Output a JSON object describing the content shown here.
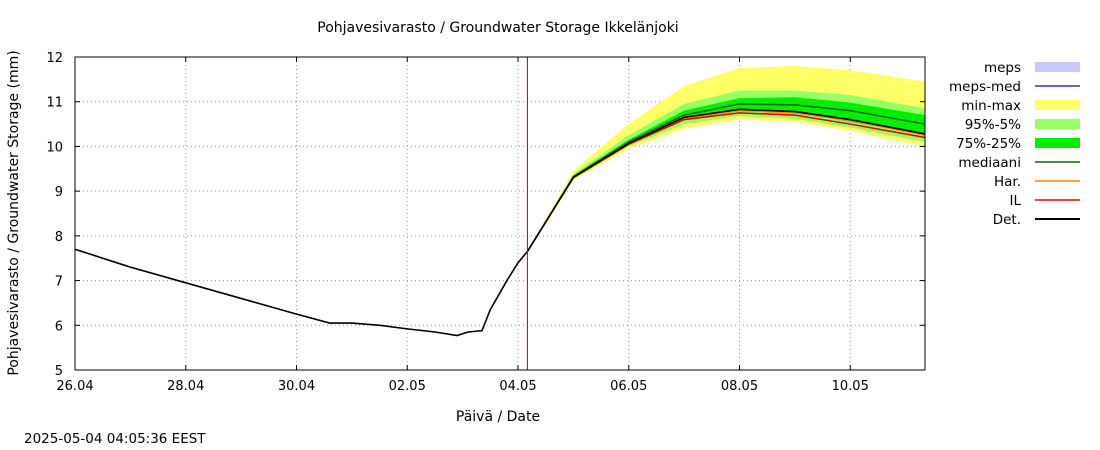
{
  "chart_data": {
    "type": "line",
    "title": "Pohjavesivarasto / Groundwater Storage   Ikkelänjoki",
    "xlabel": "Päivä / Date",
    "ylabel": "Pohjavesivarasto / Groundwater Storage (mm)",
    "timestamp": "2025-05-04 04:05:36 EEST",
    "xlim": [
      0,
      15.35
    ],
    "ylim": [
      5,
      12
    ],
    "x_unit": "days since 26.04",
    "grid": true,
    "xticks": [
      {
        "value": 0,
        "label": "26.04"
      },
      {
        "value": 2,
        "label": "28.04"
      },
      {
        "value": 4,
        "label": "30.04"
      },
      {
        "value": 6,
        "label": "02.05"
      },
      {
        "value": 8,
        "label": "04.05"
      },
      {
        "value": 10,
        "label": "06.05"
      },
      {
        "value": 12,
        "label": "08.05"
      },
      {
        "value": 14,
        "label": "10.05"
      }
    ],
    "yticks": [
      5,
      6,
      7,
      8,
      9,
      10,
      11,
      12
    ],
    "now_marker_x": 8.17,
    "legend": [
      {
        "label": "meps",
        "color": "#c8c8ff",
        "kind": "band"
      },
      {
        "label": "meps-med",
        "color": "#3333cc",
        "kind": "line"
      },
      {
        "label": "min-max",
        "color": "#ffff66",
        "kind": "band"
      },
      {
        "label": "95%-5%",
        "color": "#99ff66",
        "kind": "band"
      },
      {
        "label": "75%-25%",
        "color": "#00ee00",
        "kind": "band"
      },
      {
        "label": "mediaani",
        "color": "#006600",
        "kind": "line"
      },
      {
        "label": "Har.",
        "color": "#ff8800",
        "kind": "line"
      },
      {
        "label": "IL",
        "color": "#dd0000",
        "kind": "line"
      },
      {
        "label": "Det.",
        "color": "#000000",
        "kind": "line"
      }
    ],
    "observed": {
      "x": [
        0,
        1,
        2,
        3,
        4,
        4.6,
        5,
        5.5,
        6,
        6.5,
        6.9,
        7.1,
        7.35,
        7.5,
        7.8,
        8.0,
        8.17
      ],
      "y": [
        7.7,
        7.3,
        6.95,
        6.6,
        6.25,
        6.05,
        6.05,
        6.0,
        5.92,
        5.85,
        5.77,
        5.85,
        5.88,
        6.35,
        7.0,
        7.4,
        7.65
      ]
    },
    "forecast_x": [
      8.17,
      9,
      10,
      11,
      12,
      13,
      14,
      15.35
    ],
    "bands": {
      "min-max": {
        "low": [
          7.65,
          9.25,
          9.95,
          10.4,
          10.6,
          10.55,
          10.35,
          10.0
        ],
        "high": [
          7.65,
          9.45,
          10.5,
          11.35,
          11.75,
          11.8,
          11.7,
          11.45
        ]
      },
      "95%-5%": {
        "low": [
          7.65,
          9.28,
          10.0,
          10.5,
          10.68,
          10.62,
          10.42,
          10.1
        ],
        "high": [
          7.65,
          9.38,
          10.25,
          10.95,
          11.25,
          11.25,
          11.15,
          10.85
        ]
      },
      "75%-25%": {
        "low": [
          7.65,
          9.3,
          10.05,
          10.6,
          10.8,
          10.75,
          10.55,
          10.25
        ],
        "high": [
          7.65,
          9.35,
          10.15,
          10.8,
          11.08,
          11.1,
          10.98,
          10.7
        ]
      }
    },
    "series": [
      {
        "name": "mediaani",
        "values": [
          7.65,
          9.32,
          10.1,
          10.7,
          10.95,
          10.93,
          10.8,
          10.5
        ]
      },
      {
        "name": "Har.",
        "values": [
          7.65,
          9.3,
          10.05,
          10.62,
          10.8,
          10.75,
          10.58,
          10.25
        ]
      },
      {
        "name": "IL",
        "values": [
          7.65,
          9.3,
          10.05,
          10.6,
          10.75,
          10.7,
          10.5,
          10.2
        ]
      },
      {
        "name": "Det.",
        "values": [
          7.65,
          9.31,
          10.07,
          10.65,
          10.83,
          10.78,
          10.6,
          10.28
        ]
      }
    ]
  }
}
